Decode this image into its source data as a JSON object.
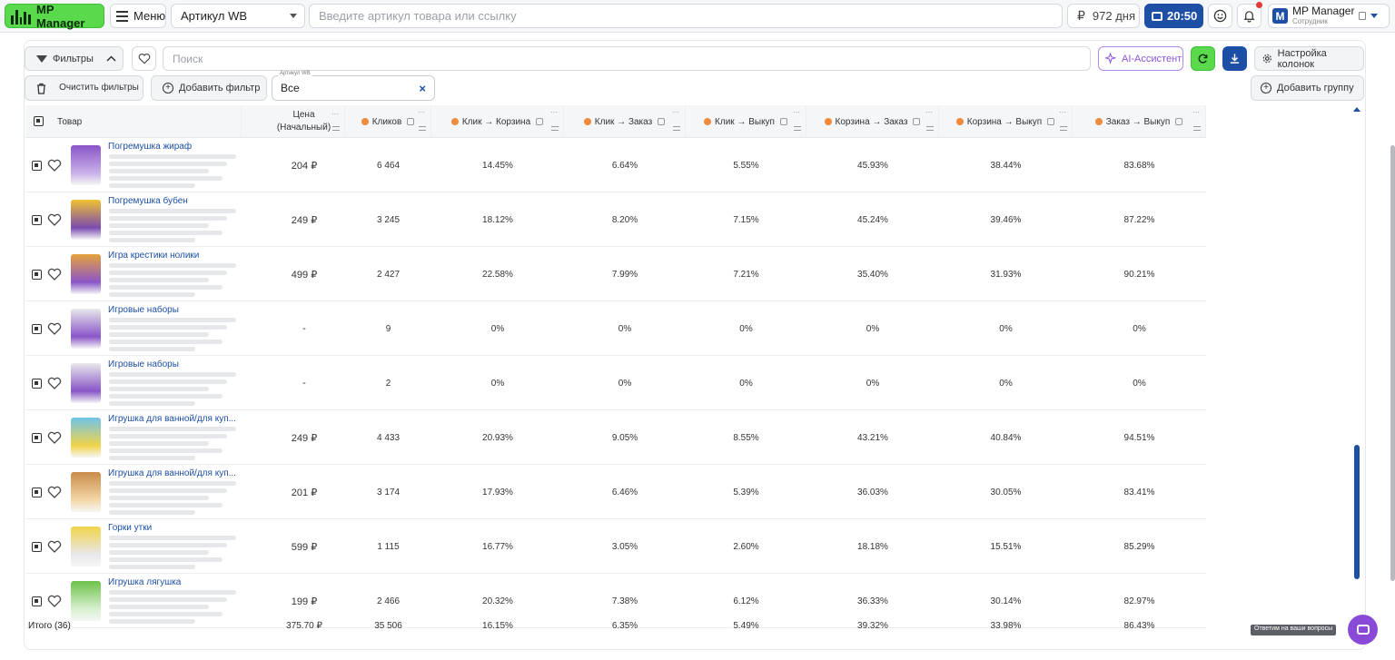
{
  "topbar": {
    "logo": "MP Manager",
    "menu": "Меню",
    "article_select": "Артикул WB",
    "search_placeholder": "Введите артикул товара или ссылку",
    "days": "972 дня",
    "currency_symbol": "₽",
    "timer": "20:50",
    "account_name": "MP Manager",
    "account_role": "Сотрудник",
    "account_letter": "M"
  },
  "toolbar": {
    "filters": "Фильтры",
    "search_placeholder": "Поиск",
    "ai_assistant": "AI-Ассистент",
    "column_settings": "Настройка колонок",
    "clear_filters": "Очистить фильтры",
    "add_filter": "Добавить фильтр",
    "chip_label": "Артикул WB",
    "chip_value": "Все",
    "add_group": "Добавить группу"
  },
  "table": {
    "headers": {
      "product": "Товар",
      "price": "Цена (Начальный)",
      "clicks": "Кликов",
      "click_cart": "Клик → Корзина",
      "click_order": "Клик → Заказ",
      "click_buyout": "Клик → Выкуп",
      "cart_order": "Корзина → Заказ",
      "cart_buyout": "Корзина → Выкуп",
      "order_buyout": "Заказ → Выкуп"
    },
    "rows": [
      {
        "name": "Погремушка жираф",
        "price": "204 ₽",
        "clicks": "6 464",
        "click_cart": "14.45%",
        "click_order": "6.64%",
        "click_buyout": "5.55%",
        "cart_order": "45.93%",
        "cart_buyout": "38.44%",
        "order_buyout": "83.68%"
      },
      {
        "name": "Погремушка бубен",
        "price": "249 ₽",
        "clicks": "3 245",
        "click_cart": "18.12%",
        "click_order": "8.20%",
        "click_buyout": "7.15%",
        "cart_order": "45.24%",
        "cart_buyout": "39.46%",
        "order_buyout": "87.22%"
      },
      {
        "name": "Игра крестики нолики",
        "price": "499 ₽",
        "clicks": "2 427",
        "click_cart": "22.58%",
        "click_order": "7.99%",
        "click_buyout": "7.21%",
        "cart_order": "35.40%",
        "cart_buyout": "31.93%",
        "order_buyout": "90.21%"
      },
      {
        "name": "Игровые наборы",
        "price": "-",
        "clicks": "9",
        "click_cart": "0%",
        "click_order": "0%",
        "click_buyout": "0%",
        "cart_order": "0%",
        "cart_buyout": "0%",
        "order_buyout": "0%"
      },
      {
        "name": "Игровые наборы",
        "price": "-",
        "clicks": "2",
        "click_cart": "0%",
        "click_order": "0%",
        "click_buyout": "0%",
        "cart_order": "0%",
        "cart_buyout": "0%",
        "order_buyout": "0%"
      },
      {
        "name": "Игрушка для ванной/для куп...",
        "price": "249 ₽",
        "clicks": "4 433",
        "click_cart": "20.93%",
        "click_order": "9.05%",
        "click_buyout": "8.55%",
        "cart_order": "43.21%",
        "cart_buyout": "40.84%",
        "order_buyout": "94.51%"
      },
      {
        "name": "Игрушка для ванной/для куп...",
        "price": "201 ₽",
        "clicks": "3 174",
        "click_cart": "17.93%",
        "click_order": "6.46%",
        "click_buyout": "5.39%",
        "cart_order": "36.03%",
        "cart_buyout": "30.05%",
        "order_buyout": "83.41%"
      },
      {
        "name": "Горки утки",
        "price": "599 ₽",
        "clicks": "1 115",
        "click_cart": "16.77%",
        "click_order": "3.05%",
        "click_buyout": "2.60%",
        "cart_order": "18.18%",
        "cart_buyout": "15.51%",
        "order_buyout": "85.29%"
      },
      {
        "name": "Игрушка лягушка",
        "price": "199 ₽",
        "clicks": "2 466",
        "click_cart": "20.32%",
        "click_order": "7.38%",
        "click_buyout": "6.12%",
        "cart_order": "36.33%",
        "cart_buyout": "30.14%",
        "order_buyout": "82.97%"
      }
    ],
    "total": {
      "label": "Итого (36)",
      "price": "375.70 ₽",
      "clicks": "35 506",
      "click_cart": "16.15%",
      "click_order": "6.35%",
      "click_buyout": "5.49%",
      "cart_order": "39.32%",
      "cart_buyout": "33.98%",
      "order_buyout": "86.43%"
    }
  },
  "help_text": "Ответим на ваши вопросы",
  "colors": {
    "accent": "#1d4fa5",
    "green": "#59d94b",
    "orange_dot": "#f08a3c",
    "purple": "#8a4ad8"
  }
}
